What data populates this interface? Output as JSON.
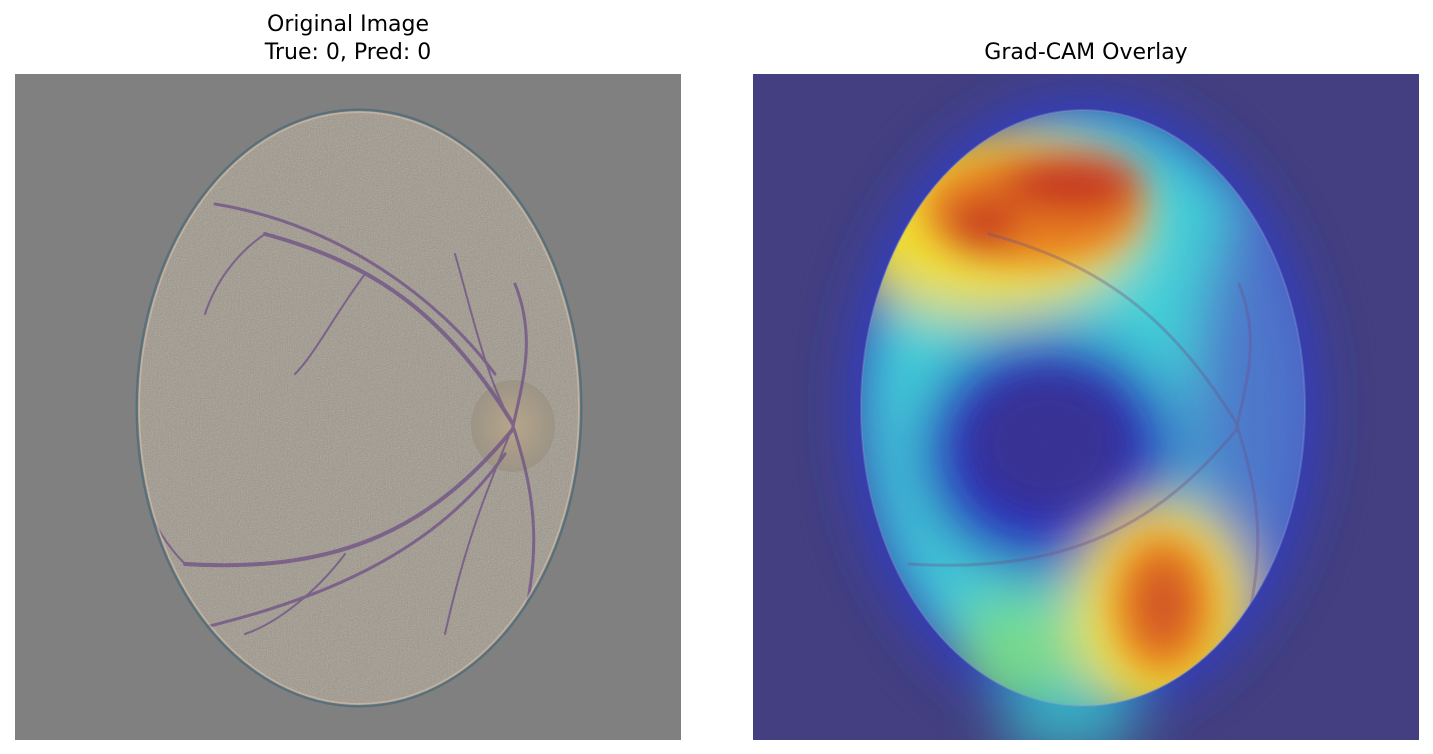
{
  "panels": [
    {
      "title_lines": [
        "Original Image",
        "True: 0, Pred: 0"
      ],
      "image": "fundus-photograph"
    },
    {
      "title_lines": [
        "Grad-CAM Overlay"
      ],
      "image": "grad-cam-heatmap-overlay"
    }
  ],
  "colors": {
    "background_gray": "#808080",
    "fundus_tint": "#9c9486",
    "vessel": "#6e4f86",
    "cam_background": "#433f80",
    "cam_low": "#2a3dd6",
    "cam_mid": "#3fd0d8",
    "cam_high": "#c7361c"
  }
}
